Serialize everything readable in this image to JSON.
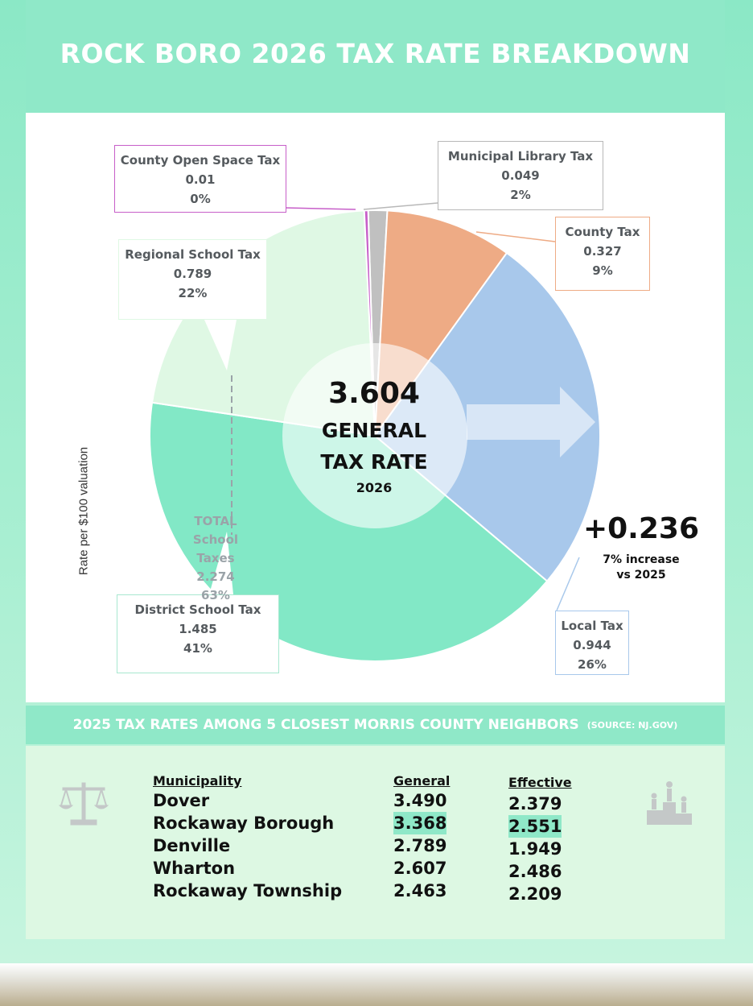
{
  "title": "ROCK BORO 2026 TAX RATE BREAKDOWN",
  "colors": {
    "library": "#c0c0c0",
    "county": "#eeab85",
    "local": "#a8c8eb",
    "district_school": "#82e8c6",
    "regional_school": "#dff8e4",
    "open_space": "#c75fc9",
    "band": "#8fe8c8"
  },
  "chart_data": {
    "type": "pie",
    "title": "ROCK BORO 2026 TAX RATE BREAKDOWN",
    "ylabel": "Rate per $100 valuation",
    "total": "3.604",
    "series": [
      {
        "name": "Municipal Library Tax",
        "value": 0.049,
        "percent": "2%"
      },
      {
        "name": "County Tax",
        "value": 0.327,
        "percent": "9%"
      },
      {
        "name": "Local Tax",
        "value": 0.944,
        "percent": "26%"
      },
      {
        "name": "District School Tax",
        "value": 1.485,
        "percent": "41%"
      },
      {
        "name": "Regional School Tax",
        "value": 0.789,
        "percent": "22%"
      },
      {
        "name": "County Open Space Tax",
        "value": 0.01,
        "percent": "0%"
      }
    ]
  },
  "labels": {
    "open_space": {
      "name": "County Open Space Tax",
      "value": "0.01",
      "pct": "0%"
    },
    "library": {
      "name": "Municipal Library Tax",
      "value": "0.049",
      "pct": "2%"
    },
    "county": {
      "name": "County Tax",
      "value": "0.327",
      "pct": "9%"
    },
    "regional": {
      "name": "Regional School Tax",
      "value": "0.789",
      "pct": "22%"
    },
    "district": {
      "name": "District School Tax",
      "value": "1.485",
      "pct": "41%"
    },
    "local": {
      "name": "Local Tax",
      "value": "0.944",
      "pct": "26%"
    }
  },
  "center": {
    "value": "3.604",
    "line1": "GENERAL",
    "line2": "TAX RATE",
    "year": "2026"
  },
  "school_total": {
    "l1": "TOTAL",
    "l2": "School",
    "l3": "Taxes",
    "value": "2.274",
    "pct": "63%"
  },
  "increase": {
    "value": "+0.236",
    "line1": "7% increase",
    "line2": "vs 2025"
  },
  "neighbors": {
    "heading": "2025 TAX RATES AMONG 5 CLOSEST MORRIS COUNTY NEIGHBORS",
    "source": "(SOURCE: NJ.GOV)",
    "columns": [
      "Municipality",
      "General",
      "Effective"
    ],
    "rows": [
      {
        "name": "Dover",
        "general": "3.490",
        "effective": "2.379"
      },
      {
        "name": "Rockaway Borough",
        "general": "3.368",
        "effective": "2.551"
      },
      {
        "name": "Denville",
        "general": "2.789",
        "effective": "1.949"
      },
      {
        "name": "Wharton",
        "general": "2.607",
        "effective": "2.486"
      },
      {
        "name": "Rockaway Township",
        "general": "2.463",
        "effective": "2.209"
      }
    ],
    "icons": [
      "scales-icon",
      "podium-icon"
    ]
  }
}
